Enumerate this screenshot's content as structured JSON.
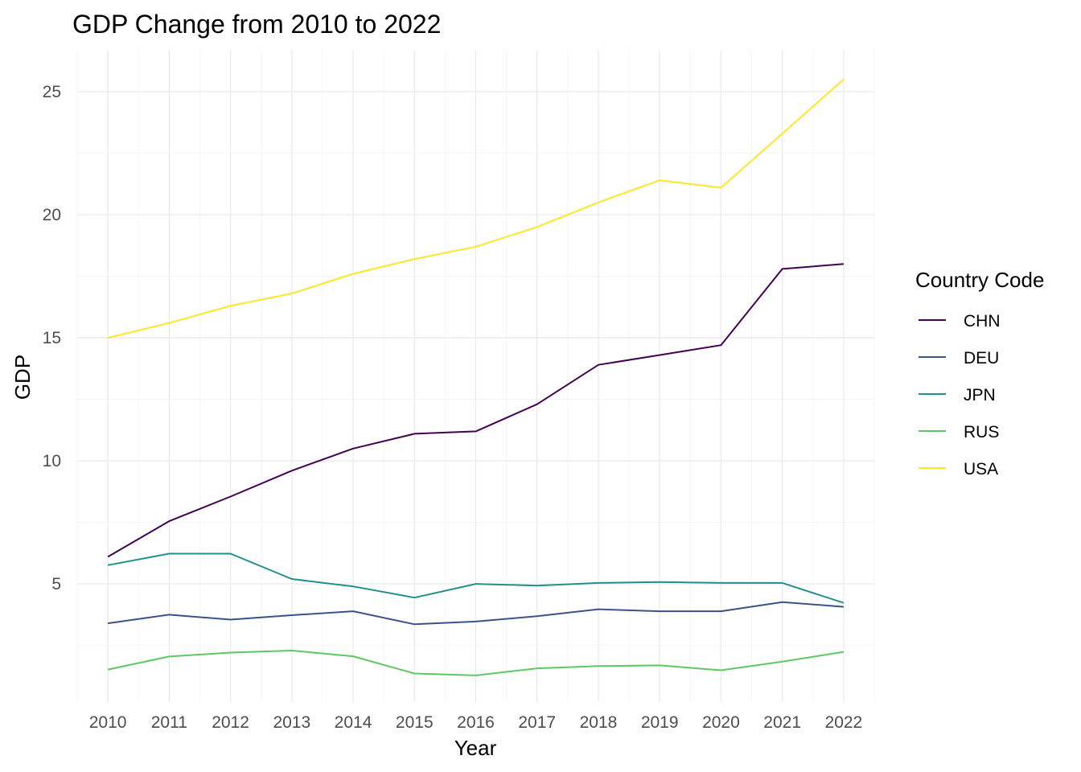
{
  "chart_data": {
    "type": "line",
    "title": "GDP Change from 2010 to 2022",
    "xlabel": "Year",
    "ylabel": "GDP",
    "x": [
      2010,
      2011,
      2012,
      2013,
      2014,
      2015,
      2016,
      2017,
      2018,
      2019,
      2020,
      2021,
      2022
    ],
    "x_ticks": [
      "2010",
      "2011",
      "2012",
      "2013",
      "2014",
      "2015",
      "2016",
      "2017",
      "2018",
      "2019",
      "2020",
      "2021",
      "2022"
    ],
    "y_ticks": [
      "5",
      "10",
      "15",
      "20",
      "25"
    ],
    "xlim": [
      2009.5,
      2022.5
    ],
    "ylim": [
      0.2,
      26.7
    ],
    "grid": true,
    "legend": {
      "title": "Country Code",
      "position": "right"
    },
    "series": [
      {
        "name": "CHN",
        "color": "#440154",
        "values": [
          6.1,
          7.55,
          8.55,
          9.6,
          10.5,
          11.1,
          11.2,
          12.3,
          13.9,
          14.3,
          14.7,
          17.8,
          18.0
        ]
      },
      {
        "name": "DEU",
        "color": "#3B528B",
        "values": [
          3.4,
          3.75,
          3.55,
          3.73,
          3.89,
          3.36,
          3.47,
          3.69,
          3.97,
          3.89,
          3.89,
          4.26,
          4.07
        ]
      },
      {
        "name": "JPN",
        "color": "#21908C",
        "values": [
          5.76,
          6.23,
          6.23,
          5.2,
          4.9,
          4.44,
          5.0,
          4.93,
          5.04,
          5.08,
          5.04,
          5.04,
          4.23
        ]
      },
      {
        "name": "RUS",
        "color": "#5DC863",
        "values": [
          1.52,
          2.05,
          2.21,
          2.29,
          2.06,
          1.36,
          1.28,
          1.57,
          1.66,
          1.69,
          1.49,
          1.84,
          2.24
        ]
      },
      {
        "name": "USA",
        "color": "#FDE725",
        "values": [
          15.0,
          15.6,
          16.3,
          16.8,
          17.6,
          18.2,
          18.7,
          19.5,
          20.5,
          21.4,
          21.1,
          23.3,
          25.5
        ]
      }
    ]
  }
}
